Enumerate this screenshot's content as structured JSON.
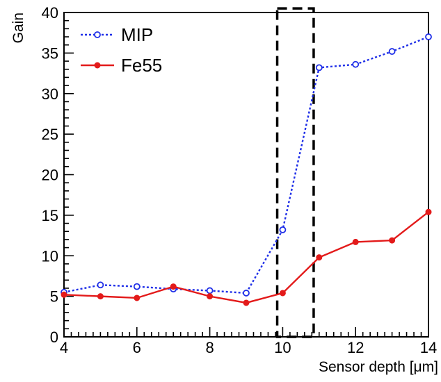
{
  "chart_data": {
    "type": "line",
    "title": "",
    "xlabel": "Sensor depth [μm]",
    "ylabel": "Gain",
    "xlim": [
      4,
      14
    ],
    "ylim": [
      0,
      40
    ],
    "xticks": [
      "4",
      "6",
      "8",
      "10",
      "12",
      "14"
    ],
    "yticks": [
      "0",
      "5",
      "10",
      "15",
      "20",
      "25",
      "30",
      "35",
      "40"
    ],
    "grid": false,
    "legend": "top-left",
    "series": [
      {
        "name": "MIP",
        "color": "#1f2fe8",
        "line_style": "dotted",
        "marker": "open-circle",
        "x": [
          4,
          5,
          6,
          7,
          8,
          9,
          10,
          11,
          12,
          13,
          14
        ],
        "y": [
          5.5,
          6.4,
          6.2,
          5.9,
          5.7,
          5.4,
          13.2,
          33.2,
          33.6,
          35.2,
          37.0
        ]
      },
      {
        "name": "Fe55",
        "color": "#e31a1a",
        "line_style": "solid",
        "marker": "filled-circle",
        "x": [
          4,
          5,
          6,
          7,
          8,
          9,
          10,
          11,
          12,
          13,
          14
        ],
        "y": [
          5.2,
          5.0,
          4.8,
          6.2,
          5.0,
          4.2,
          5.4,
          9.8,
          11.7,
          11.9,
          15.4
        ]
      }
    ],
    "annotations": [
      {
        "type": "dashed-rectangle",
        "x_range": [
          9.85,
          10.85
        ],
        "y_range": [
          0,
          40.5
        ],
        "color": "#000000"
      }
    ]
  }
}
